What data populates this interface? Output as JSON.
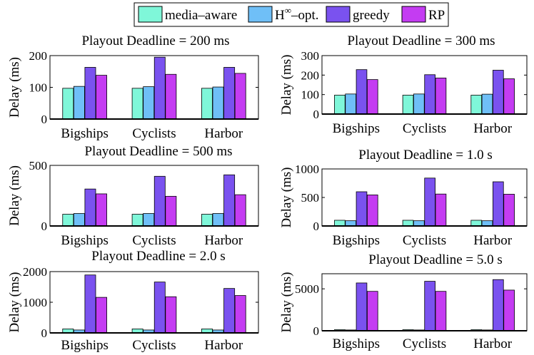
{
  "legend": {
    "entries": [
      {
        "label": "media–aware",
        "color": "#7ff7d9"
      },
      {
        "label": "H",
        "sup": "∞",
        "suffix": "–opt.",
        "color": "#6fbff7"
      },
      {
        "label": "greedy",
        "color": "#7a52ef"
      },
      {
        "label": "RP",
        "color": "#c43cf2"
      }
    ]
  },
  "chart_data": [
    {
      "type": "bar",
      "title": "Playout Deadline = 200 ms",
      "ylabel": "Delay (ms)",
      "categories": [
        "Bigships",
        "Cyclists",
        "Harbor"
      ],
      "ylim": [
        0,
        200
      ],
      "yticks": [
        0,
        100,
        200
      ],
      "series": [
        {
          "name": "media–aware",
          "values": [
            97,
            97,
            97
          ]
        },
        {
          "name": "H∞–opt.",
          "values": [
            103,
            102,
            101
          ]
        },
        {
          "name": "greedy",
          "values": [
            163,
            195,
            163
          ]
        },
        {
          "name": "RP",
          "values": [
            138,
            141,
            144
          ]
        }
      ]
    },
    {
      "type": "bar",
      "title": "Playout Deadline = 300 ms",
      "ylabel": "Delay (ms)",
      "categories": [
        "Bigships",
        "Cyclists",
        "Harbor"
      ],
      "ylim": [
        0,
        300
      ],
      "yticks": [
        0,
        100,
        200,
        300
      ],
      "series": [
        {
          "name": "media–aware",
          "values": [
            97,
            97,
            97
          ]
        },
        {
          "name": "H∞–opt.",
          "values": [
            103,
            103,
            102
          ]
        },
        {
          "name": "greedy",
          "values": [
            228,
            202,
            225
          ]
        },
        {
          "name": "RP",
          "values": [
            177,
            185,
            181
          ]
        }
      ]
    },
    {
      "type": "bar",
      "title": "Playout Deadline = 500 ms",
      "ylabel": "Delay (ms)",
      "categories": [
        "Bigships",
        "Cyclists",
        "Harbor"
      ],
      "ylim": [
        0,
        500
      ],
      "yticks": [
        0,
        500
      ],
      "series": [
        {
          "name": "media–aware",
          "values": [
            97,
            97,
            97
          ]
        },
        {
          "name": "H∞–opt.",
          "values": [
            103,
            103,
            103
          ]
        },
        {
          "name": "greedy",
          "values": [
            305,
            410,
            422
          ]
        },
        {
          "name": "RP",
          "values": [
            265,
            245,
            258
          ]
        }
      ]
    },
    {
      "type": "bar",
      "title": "Playout Deadline = 1.0 s",
      "ylabel": "Delay (ms)",
      "categories": [
        "Bigships",
        "Cyclists",
        "Harbor"
      ],
      "ylim": [
        0,
        1000
      ],
      "yticks": [
        0,
        500,
        1000
      ],
      "series": [
        {
          "name": "media–aware",
          "values": [
            100,
            100,
            100
          ]
        },
        {
          "name": "H∞–opt.",
          "values": [
            92,
            92,
            92
          ]
        },
        {
          "name": "greedy",
          "values": [
            600,
            840,
            775
          ]
        },
        {
          "name": "RP",
          "values": [
            545,
            560,
            557
          ]
        }
      ]
    },
    {
      "type": "bar",
      "title": "Playout Deadline = 2.0 s",
      "ylabel": "Delay (ms)",
      "categories": [
        "Bigships",
        "Cyclists",
        "Harbor"
      ],
      "ylim": [
        0,
        2000
      ],
      "yticks": [
        0,
        1000,
        2000
      ],
      "series": [
        {
          "name": "media–aware",
          "values": [
            130,
            130,
            130
          ]
        },
        {
          "name": "H∞–opt.",
          "values": [
            95,
            95,
            95
          ]
        },
        {
          "name": "greedy",
          "values": [
            1890,
            1660,
            1450
          ]
        },
        {
          "name": "RP",
          "values": [
            1160,
            1180,
            1220
          ]
        }
      ]
    },
    {
      "type": "bar",
      "title": "Playout Deadline = 5.0 s",
      "ylabel": "Delay (ms)",
      "categories": [
        "Bigships",
        "Cyclists",
        "Harbor"
      ],
      "ylim": [
        0,
        6800
      ],
      "yticks": [
        0,
        5000
      ],
      "series": [
        {
          "name": "media–aware",
          "values": [
            130,
            130,
            130
          ]
        },
        {
          "name": "H∞–opt.",
          "values": [
            95,
            95,
            95
          ]
        },
        {
          "name": "greedy",
          "values": [
            5700,
            5900,
            6100
          ]
        },
        {
          "name": "RP",
          "values": [
            4700,
            4700,
            4850
          ]
        }
      ]
    }
  ]
}
